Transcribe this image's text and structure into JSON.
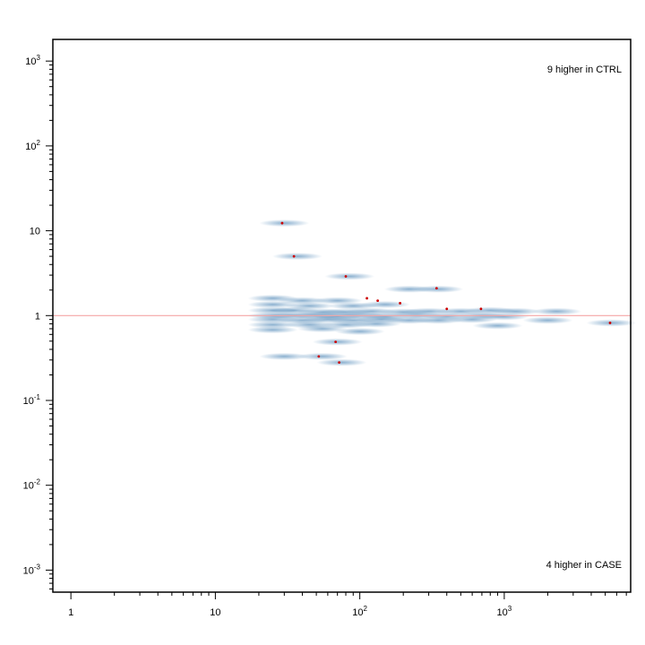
{
  "chart_data": {
    "type": "scatter",
    "title": "",
    "xlabel": "",
    "ylabel": "",
    "x_scale": "log",
    "y_scale": "log",
    "xlim": [
      0.75,
      7500
    ],
    "ylim": [
      0.00055,
      1800
    ],
    "x_ticks": [
      {
        "value": 1,
        "base": "1",
        "exp": ""
      },
      {
        "value": 10,
        "base": "10",
        "exp": ""
      },
      {
        "value": 100,
        "base": "10",
        "exp": "2"
      },
      {
        "value": 1000,
        "base": "10",
        "exp": "3"
      }
    ],
    "y_ticks": [
      {
        "value": 0.001,
        "base": "10",
        "exp": "-3"
      },
      {
        "value": 0.01,
        "base": "10",
        "exp": "-2"
      },
      {
        "value": 0.1,
        "base": "10",
        "exp": "-1"
      },
      {
        "value": 1,
        "base": "1",
        "exp": ""
      },
      {
        "value": 10,
        "base": "10",
        "exp": ""
      },
      {
        "value": 100,
        "base": "10",
        "exp": "2"
      },
      {
        "value": 1000,
        "base": "10",
        "exp": "3"
      }
    ],
    "reference_line": {
      "y": 1,
      "color": "#f4a6a6"
    },
    "density_color": "#2b6fa8",
    "outlier_color": "#cc0000",
    "grid": false,
    "annotations": {
      "top": "9 higher in CTRL",
      "bottom": "4 higher in CASE"
    },
    "outliers": [
      {
        "x": 29,
        "y": 12.3
      },
      {
        "x": 35,
        "y": 5.0
      },
      {
        "x": 80,
        "y": 2.9
      },
      {
        "x": 340,
        "y": 2.1
      },
      {
        "x": 112,
        "y": 1.6
      },
      {
        "x": 133,
        "y": 1.5
      },
      {
        "x": 190,
        "y": 1.4
      },
      {
        "x": 400,
        "y": 1.2
      },
      {
        "x": 690,
        "y": 1.2
      },
      {
        "x": 68,
        "y": 0.49
      },
      {
        "x": 52,
        "y": 0.33
      },
      {
        "x": 72,
        "y": 0.28
      },
      {
        "x": 5400,
        "y": 0.82
      }
    ],
    "density_points": [
      {
        "x": 30,
        "y": 12.3
      },
      {
        "x": 37,
        "y": 5.0
      },
      {
        "x": 85,
        "y": 2.9
      },
      {
        "x": 220,
        "y": 2.05
      },
      {
        "x": 350,
        "y": 2.05
      },
      {
        "x": 25,
        "y": 1.6
      },
      {
        "x": 40,
        "y": 1.5
      },
      {
        "x": 70,
        "y": 1.5
      },
      {
        "x": 25,
        "y": 1.35
      },
      {
        "x": 45,
        "y": 1.3
      },
      {
        "x": 90,
        "y": 1.3
      },
      {
        "x": 150,
        "y": 1.35
      },
      {
        "x": 25,
        "y": 1.15
      },
      {
        "x": 35,
        "y": 1.15
      },
      {
        "x": 55,
        "y": 1.1
      },
      {
        "x": 80,
        "y": 1.1
      },
      {
        "x": 120,
        "y": 1.12
      },
      {
        "x": 200,
        "y": 1.1
      },
      {
        "x": 300,
        "y": 1.12
      },
      {
        "x": 500,
        "y": 1.12
      },
      {
        "x": 800,
        "y": 1.15
      },
      {
        "x": 1200,
        "y": 1.12
      },
      {
        "x": 2300,
        "y": 1.12
      },
      {
        "x": 25,
        "y": 1.0
      },
      {
        "x": 35,
        "y": 1.0
      },
      {
        "x": 50,
        "y": 1.0
      },
      {
        "x": 70,
        "y": 0.98
      },
      {
        "x": 100,
        "y": 1.0
      },
      {
        "x": 150,
        "y": 0.98
      },
      {
        "x": 250,
        "y": 1.0
      },
      {
        "x": 400,
        "y": 0.98
      },
      {
        "x": 700,
        "y": 1.0
      },
      {
        "x": 1000,
        "y": 0.97
      },
      {
        "x": 25,
        "y": 0.9
      },
      {
        "x": 40,
        "y": 0.88
      },
      {
        "x": 60,
        "y": 0.9
      },
      {
        "x": 90,
        "y": 0.88
      },
      {
        "x": 140,
        "y": 0.9
      },
      {
        "x": 220,
        "y": 0.88
      },
      {
        "x": 350,
        "y": 0.88
      },
      {
        "x": 600,
        "y": 0.9
      },
      {
        "x": 2000,
        "y": 0.88
      },
      {
        "x": 5500,
        "y": 0.82
      },
      {
        "x": 25,
        "y": 0.78
      },
      {
        "x": 45,
        "y": 0.78
      },
      {
        "x": 80,
        "y": 0.78
      },
      {
        "x": 130,
        "y": 0.8
      },
      {
        "x": 900,
        "y": 0.76
      },
      {
        "x": 25,
        "y": 0.68
      },
      {
        "x": 55,
        "y": 0.7
      },
      {
        "x": 100,
        "y": 0.65
      },
      {
        "x": 70,
        "y": 0.49
      },
      {
        "x": 30,
        "y": 0.33
      },
      {
        "x": 55,
        "y": 0.33
      },
      {
        "x": 75,
        "y": 0.28
      }
    ]
  }
}
